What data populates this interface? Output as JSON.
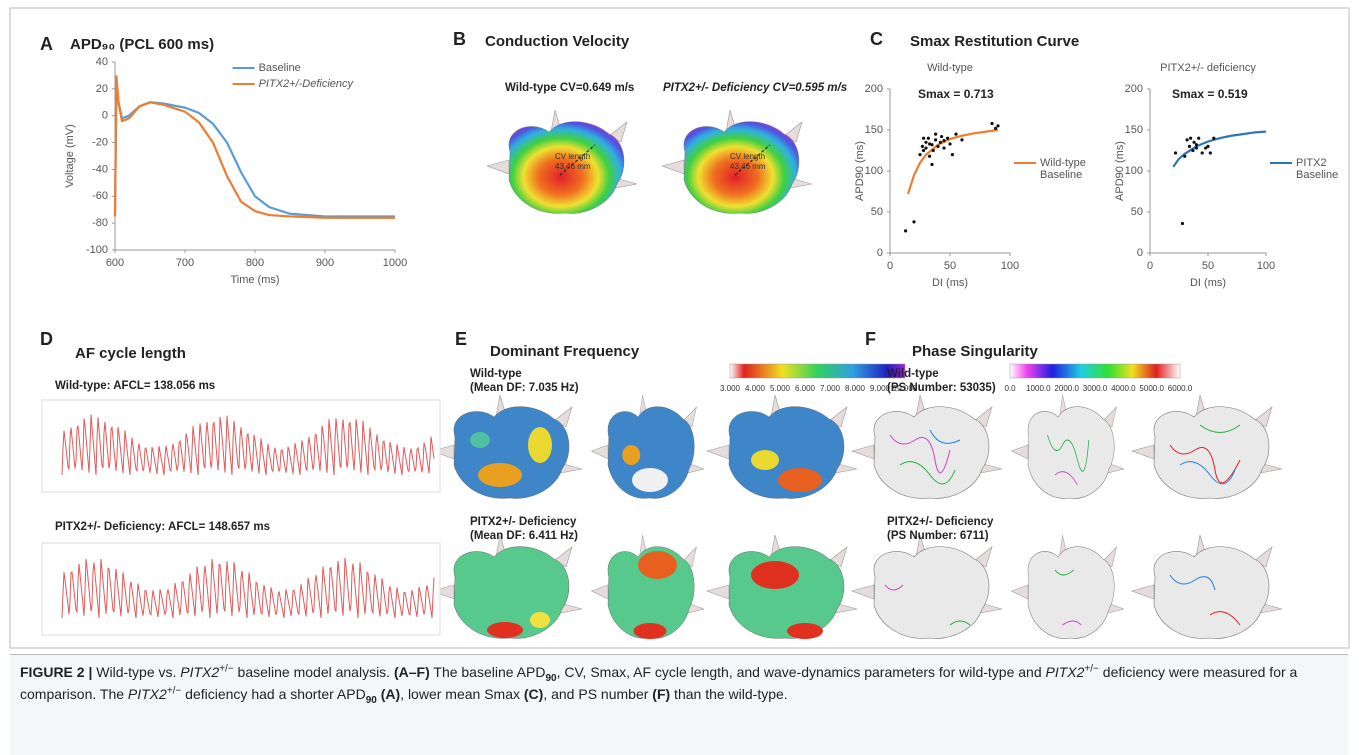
{
  "chart_data": [
    {
      "type": "line",
      "title": "APD₉₀ (PCL 600 ms)",
      "xlabel": "Time (ms)",
      "ylabel": "Voltage (mV)",
      "x": [
        600,
        602,
        605,
        610,
        620,
        635,
        650,
        670,
        700,
        720,
        740,
        760,
        780,
        800,
        820,
        850,
        900,
        1000
      ],
      "series": [
        {
          "name": "Baseline",
          "color": "#5b9bd5",
          "values": [
            -75,
            25,
            10,
            -2,
            0,
            7,
            10,
            9,
            6,
            2,
            -6,
            -20,
            -42,
            -60,
            -68,
            -73,
            -75,
            -75
          ]
        },
        {
          "name": "PITX2+/-Deficiency",
          "color": "#ed7d31",
          "values": [
            -75,
            30,
            10,
            -4,
            -2,
            7,
            10,
            8,
            3,
            -5,
            -20,
            -45,
            -64,
            -71,
            -74,
            -75,
            -76,
            -76
          ]
        }
      ],
      "xlim": [
        600,
        1000
      ],
      "xticks": [
        600,
        700,
        800,
        900,
        1000
      ],
      "ylim": [
        -100,
        40
      ],
      "yticks": [
        -100,
        -80,
        -60,
        -40,
        -20,
        0,
        20,
        40
      ],
      "legend": "upper right",
      "grid": false
    },
    {
      "type": "scatter",
      "title": "Wild-type",
      "annotation": "Smax = 0.713",
      "xlabel": "DI (ms)",
      "ylabel": "APD90 (ms)",
      "series": [
        {
          "name": "Wild-type Baseline",
          "color": "#ed7d31",
          "mode": "line",
          "x": [
            15,
            20,
            25,
            30,
            40,
            50,
            60,
            70,
            80,
            90
          ],
          "values": [
            72,
            95,
            110,
            120,
            132,
            139,
            143,
            146,
            148,
            150
          ]
        },
        {
          "color": "#111111",
          "mode": "points",
          "x": [
            13,
            20,
            25,
            27,
            28,
            30,
            30,
            32,
            33,
            35,
            36,
            38,
            38,
            40,
            42,
            43,
            45,
            45,
            48,
            50,
            52,
            55,
            60,
            28,
            33,
            85,
            88,
            90,
            35
          ],
          "values": [
            27,
            38,
            120,
            130,
            125,
            135,
            128,
            140,
            118,
            132,
            125,
            145,
            138,
            130,
            135,
            142,
            128,
            137,
            140,
            133,
            120,
            145,
            138,
            140,
            133,
            158,
            152,
            155,
            108
          ]
        }
      ],
      "xlim": [
        0,
        100
      ],
      "xticks": [
        0,
        50,
        100
      ],
      "ylim": [
        0,
        200
      ],
      "yticks": [
        0,
        50,
        100,
        150,
        200
      ],
      "legend": "right"
    },
    {
      "type": "scatter",
      "title": "PITX2+/- deficiency",
      "annotation": "Smax = 0.519",
      "xlabel": "DI (ms)",
      "ylabel": "APD90 (ms)",
      "series": [
        {
          "name": "PITX2 Baseline",
          "color": "#2e75b6",
          "mode": "line",
          "x": [
            20,
            25,
            30,
            40,
            50,
            60,
            70,
            80,
            90,
            100
          ],
          "values": [
            105,
            115,
            121,
            130,
            136,
            140,
            143,
            145,
            147,
            148
          ]
        },
        {
          "color": "#111111",
          "mode": "points",
          "x": [
            22,
            28,
            30,
            32,
            34,
            35,
            37,
            38,
            40,
            42,
            45,
            48,
            50,
            52,
            55,
            40
          ],
          "values": [
            122,
            36,
            118,
            138,
            130,
            140,
            125,
            135,
            132,
            140,
            122,
            128,
            130,
            122,
            140,
            128
          ]
        }
      ],
      "xlim": [
        0,
        100
      ],
      "xticks": [
        0,
        50,
        100
      ],
      "ylim": [
        0,
        200
      ],
      "yticks": [
        0,
        50,
        100,
        150,
        200
      ],
      "legend": "right"
    }
  ],
  "panels": {
    "A": {
      "letter": "A"
    },
    "B": {
      "letter": "B",
      "title": "Conduction Velocity",
      "left_label": "Wild-type CV=0.649 m/s",
      "right_label": "PITX2+/- Deficiency CV=0.595 m/s",
      "cv_label": "CV length",
      "cv_value": "43.46 mm"
    },
    "C": {
      "letter": "C",
      "title": "Smax Restitution Curve"
    },
    "D": {
      "letter": "D",
      "title": "AF cycle length",
      "top_label": "Wild-type: AFCL= 138.056 ms",
      "bottom_label": "PITX2+/- Deficiency: AFCL= 148.657 ms"
    },
    "E": {
      "letter": "E",
      "title": "Dominant Frequency",
      "top_label": [
        "Wild-type",
        "(Mean DF: 7.035 Hz)"
      ],
      "bottom_label": [
        "PITX2+/- Deficiency",
        "(Mean DF: 6.411 Hz)"
      ],
      "colorbar": [
        "3.000",
        "4.000",
        "5.000",
        "6.000",
        "7.000",
        "8.000",
        "9.000",
        "10.000"
      ]
    },
    "F": {
      "letter": "F",
      "title": "Phase Singularity",
      "top_label": [
        "Wild-type",
        "(PS Number: 53035)"
      ],
      "bottom_label": [
        "PITX2+/- Deficiency",
        "(PS Number: 6711)"
      ],
      "colorbar": [
        "0.0",
        "1000.0",
        "2000.0",
        "3000.0",
        "4000.0",
        "5000.0",
        "6000.0"
      ]
    }
  },
  "caption": [
    {
      "text": "FIGURE 2 | ",
      "style": "b"
    },
    {
      "text": "Wild-type vs. "
    },
    {
      "text": "PITX2",
      "style": "i"
    },
    {
      "text": "+/−",
      "style": "sup"
    },
    {
      "text": " baseline model analysis. "
    },
    {
      "text": "(A–F)",
      "style": "b"
    },
    {
      "text": " The baseline APD"
    },
    {
      "text": "90",
      "style": "sub"
    },
    {
      "text": ", CV, Smax, AF cycle length, and wave-dynamics parameters for wild-type and "
    },
    {
      "text": "PITX2",
      "style": "i"
    },
    {
      "text": "+/−",
      "style": "sup"
    },
    {
      "text": " deficiency were measured for a comparison. The "
    },
    {
      "text": "PITX2",
      "style": "i"
    },
    {
      "text": "+/−",
      "style": "sup"
    },
    {
      "text": " deficiency had a shorter APD"
    },
    {
      "text": "90",
      "style": "sub"
    },
    {
      "text": " (A)",
      "style": "b"
    },
    {
      "text": ", lower mean Smax "
    },
    {
      "text": "(C)",
      "style": "b"
    },
    {
      "text": ", and PS number "
    },
    {
      "text": "(F)",
      "style": "b"
    },
    {
      "text": " than the wild-type."
    }
  ]
}
